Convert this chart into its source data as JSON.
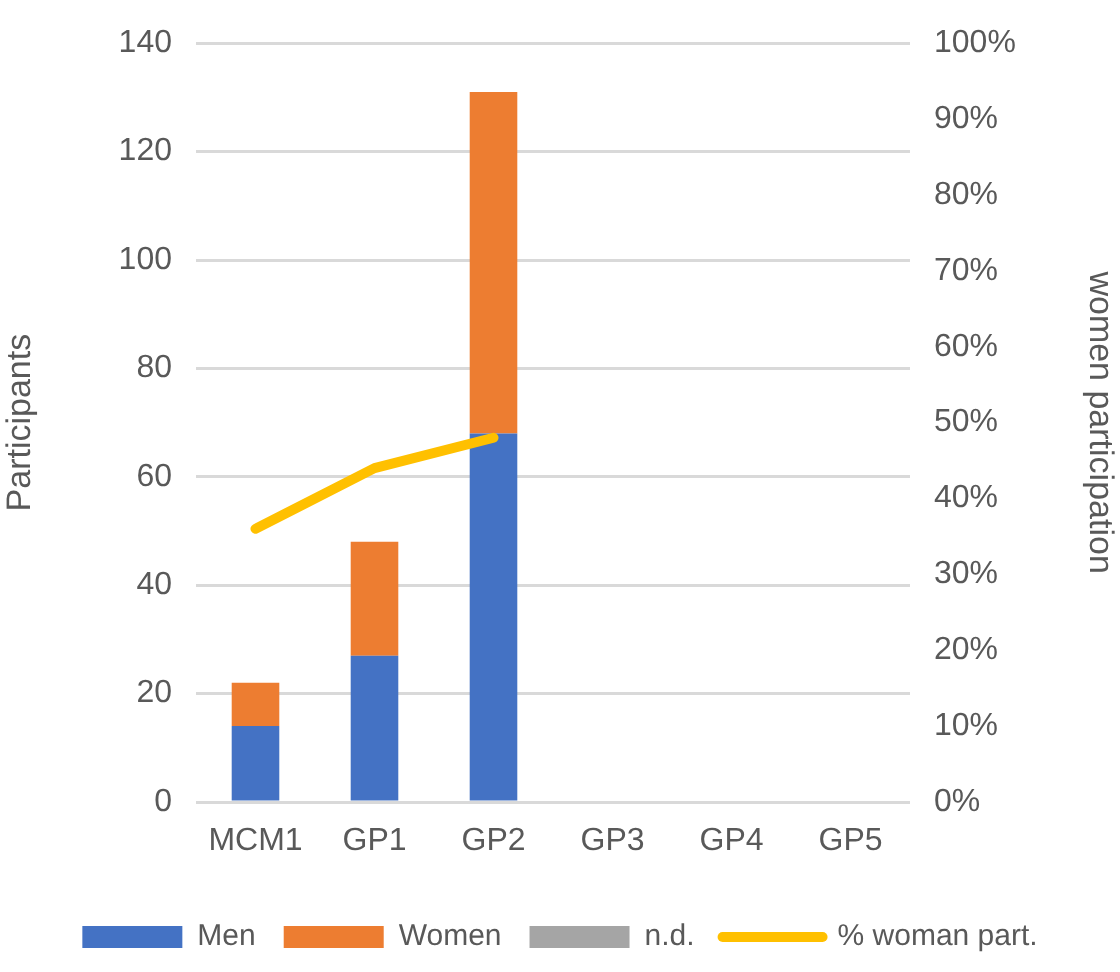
{
  "chart_data": {
    "type": "bar",
    "stacked": true,
    "categories": [
      "MCM1",
      "GP1",
      "GP2",
      "GP3",
      "GP4",
      "GP5"
    ],
    "series": [
      {
        "name": "Men",
        "color": "#4472c4",
        "values": [
          14,
          27,
          68,
          null,
          null,
          null
        ]
      },
      {
        "name": "Women",
        "color": "#ed7d31",
        "values": [
          8,
          21,
          63,
          null,
          null,
          null
        ]
      },
      {
        "name": "n.d.",
        "color": "#a5a5a5",
        "values": [
          null,
          null,
          null,
          null,
          null,
          null
        ]
      },
      {
        "name": "% woman part.",
        "type": "line",
        "axis": "y2",
        "color": "#ffc000",
        "values": [
          36,
          44,
          48,
          null,
          null,
          null
        ]
      }
    ],
    "ylabel": "Participants",
    "y2label": "women participation",
    "ylim": [
      0,
      140
    ],
    "yticks": [
      0,
      20,
      40,
      60,
      80,
      100,
      120,
      140
    ],
    "y2lim": [
      0,
      100
    ],
    "y2ticks": [
      {
        "value": 0,
        "label": "0%"
      },
      {
        "value": 10,
        "label": "10%"
      },
      {
        "value": 20,
        "label": "20%"
      },
      {
        "value": 30,
        "label": "30%"
      },
      {
        "value": 40,
        "label": "40%"
      },
      {
        "value": 50,
        "label": "50%"
      },
      {
        "value": 60,
        "label": "60%"
      },
      {
        "value": 70,
        "label": "70%"
      },
      {
        "value": 80,
        "label": "80%"
      },
      {
        "value": 90,
        "label": "90%"
      },
      {
        "value": 100,
        "label": "100%"
      }
    ],
    "grid": "y",
    "legend": "bottom",
    "marker": "none"
  }
}
